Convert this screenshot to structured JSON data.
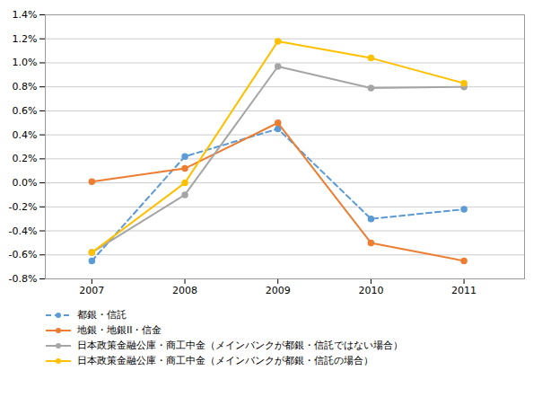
{
  "chart_data": {
    "type": "line",
    "x": [
      2007,
      2008,
      2009,
      2010,
      2011
    ],
    "series": [
      {
        "name": "都銀・信託",
        "color": "#5B9BD5",
        "line_style": "dashed",
        "marker": "circle",
        "values": [
          -0.65,
          0.22,
          0.45,
          -0.3,
          -0.22
        ]
      },
      {
        "name": "地銀・地銀II・信金",
        "color": "#ED7D31",
        "line_style": "solid",
        "marker": "circle",
        "values": [
          0.01,
          0.12,
          0.5,
          -0.5,
          -0.65
        ]
      },
      {
        "name": "日本政策金融公庫・商工中金（メインバンクが都銀・信託ではない場合）",
        "color": "#A5A5A5",
        "line_style": "solid",
        "marker": "circle",
        "values": [
          -0.58,
          -0.1,
          0.97,
          0.79,
          0.8
        ]
      },
      {
        "name": "日本政策金融公庫・商工中金（メインバンクが都銀・信託の場合）",
        "color": "#FFC000",
        "line_style": "solid",
        "marker": "circle",
        "values": [
          -0.58,
          0.0,
          1.18,
          1.04,
          0.83
        ]
      }
    ],
    "xlim": [
      2006.5,
      2011.65
    ],
    "xticks": [
      2007,
      2008,
      2009,
      2010,
      2011
    ],
    "ylim": [
      -0.8,
      1.4
    ],
    "yticks": [
      {
        "value": -0.8,
        "label": "-0.8%"
      },
      {
        "value": -0.6,
        "label": "-0.6%"
      },
      {
        "value": -0.4,
        "label": "-0.4%"
      },
      {
        "value": -0.2,
        "label": "-0.2%"
      },
      {
        "value": 0.0,
        "label": "0.0%"
      },
      {
        "value": 0.2,
        "label": "0.2%"
      },
      {
        "value": 0.4,
        "label": "0.4%"
      },
      {
        "value": 0.6,
        "label": "0.6%"
      },
      {
        "value": 0.8,
        "label": "0.8%"
      },
      {
        "value": 1.0,
        "label": "1.0%"
      },
      {
        "value": 1.2,
        "label": "1.2%"
      },
      {
        "value": 1.4,
        "label": "1.4%"
      }
    ],
    "grid": true,
    "legend": "bottom"
  }
}
